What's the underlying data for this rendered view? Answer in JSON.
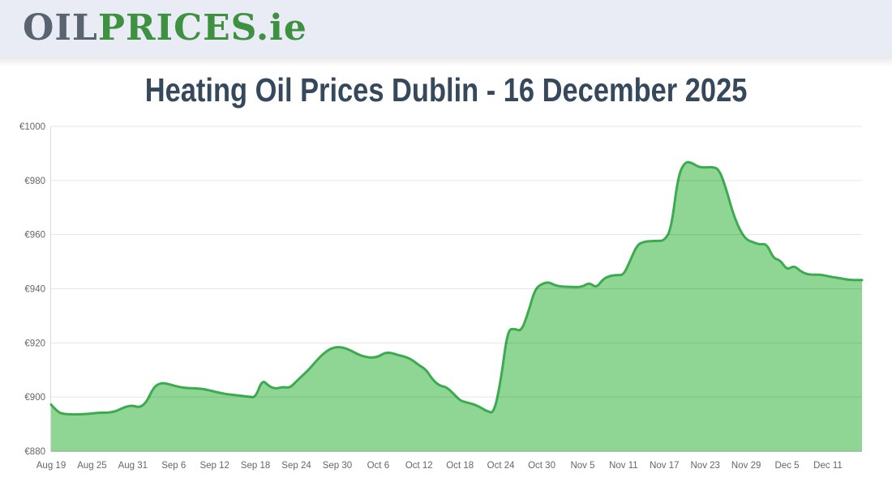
{
  "header": {
    "logo_part_oil": "OIL",
    "logo_part_prices": "PRICES",
    "logo_part_ie": ".ie"
  },
  "title": "Heating Oil Prices Dublin - 16 December 2025",
  "colors": {
    "header_bg": "#e9ecf4",
    "logo_gray": "#5a6470",
    "logo_green": "#3e9140",
    "title_color": "#36495c",
    "chart_line": "#3cab50",
    "chart_fill": "#8fd694",
    "axis_text": "#666666",
    "grid_line_alpha": "rgba(0,0,0,0.10)",
    "axis_line": "#c9c9c9",
    "left_axis_line": "#dcdcdc"
  },
  "chart_data": {
    "type": "area",
    "title": "Heating Oil Prices Dublin - 16 December 2025",
    "xlabel": "",
    "ylabel": "",
    "currency": "€",
    "ylim": [
      880,
      1000
    ],
    "grid": true,
    "legend": "none",
    "y_ticks": [
      {
        "value": 880,
        "label": "€880"
      },
      {
        "value": 900,
        "label": "€900"
      },
      {
        "value": 920,
        "label": "€920"
      },
      {
        "value": 940,
        "label": "€940"
      },
      {
        "value": 960,
        "label": "€960"
      },
      {
        "value": 980,
        "label": "€980"
      },
      {
        "value": 1000,
        "label": "€1000"
      }
    ],
    "x_tick_days": [
      0,
      6,
      12,
      18,
      24,
      30,
      36,
      42,
      48,
      54,
      60,
      66,
      72,
      78,
      84,
      90,
      96,
      102,
      108,
      114
    ],
    "x_tick_labels": [
      "Aug 19",
      "Aug 25",
      "Aug 31",
      "Sep 6",
      "Sep 12",
      "Sep 18",
      "Sep 24",
      "Sep 30",
      "Oct 6",
      "Oct 12",
      "Oct 18",
      "Oct 24",
      "Oct 30",
      "Nov 5",
      "Nov 11",
      "Nov 17",
      "Nov 23",
      "Nov 29",
      "Dec 5",
      "Dec 11"
    ],
    "x_start_label": "Aug 19",
    "x_end_label": "Dec 16",
    "days_span": 119,
    "series": [
      {
        "name": "Heating Oil Price",
        "values": [
          897.2,
          894.3,
          893.7,
          893.6,
          893.6,
          893.7,
          893.9,
          894.2,
          894.2,
          894.4,
          895.3,
          896.5,
          896.9,
          896.1,
          898.0,
          903.5,
          905.2,
          905.0,
          904.2,
          903.6,
          903.3,
          903.2,
          903.1,
          902.6,
          902.0,
          901.4,
          901.0,
          900.7,
          900.4,
          900.1,
          899.8,
          906.5,
          903.9,
          903.0,
          903.8,
          903.3,
          905.8,
          908.2,
          910.6,
          913.6,
          916.1,
          917.9,
          918.5,
          918.2,
          917.2,
          915.8,
          914.9,
          914.5,
          914.9,
          916.4,
          916.3,
          915.4,
          914.9,
          913.7,
          911.7,
          910.2,
          906.4,
          904.2,
          903.7,
          901.4,
          898.7,
          898.0,
          897.4,
          896.2,
          894.7,
          894.0,
          906.0,
          924.8,
          925.3,
          924.2,
          931.0,
          939.8,
          941.8,
          942.5,
          941.2,
          940.8,
          940.7,
          940.6,
          940.8,
          942.3,
          940.3,
          943.6,
          944.8,
          945.1,
          945.0,
          950.5,
          956.2,
          957.4,
          957.6,
          957.7,
          957.8,
          962.0,
          981.5,
          986.9,
          986.6,
          985.0,
          984.8,
          985.0,
          984.3,
          977.5,
          968.5,
          962.0,
          958.2,
          957.2,
          956.3,
          956.7,
          951.2,
          950.6,
          946.9,
          948.6,
          946.4,
          945.3,
          945.2,
          945.2,
          944.6,
          944.2,
          943.8,
          943.3,
          943.2,
          943.2
        ]
      }
    ]
  }
}
